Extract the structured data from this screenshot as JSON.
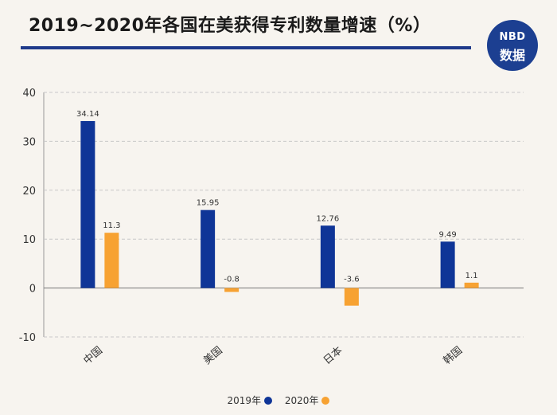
{
  "title": "2019~2020年各国在美获得专利数量增速（%）",
  "badge": {
    "line1": "NBD",
    "line2": "数据"
  },
  "chart_data": {
    "type": "bar",
    "title": "2019~2020年各国在美获得专利数量增速（%）",
    "xlabel": "",
    "ylabel": "",
    "categories": [
      "中国",
      "美国",
      "日本",
      "韩国"
    ],
    "series": [
      {
        "name": "2019年",
        "color": "#0f3597",
        "values": [
          34.14,
          15.95,
          12.76,
          9.49
        ],
        "labels": [
          "34.14",
          "15.95",
          "12.76",
          "9.49"
        ]
      },
      {
        "name": "2020年",
        "color": "#f7a232",
        "values": [
          11.3,
          -0.8,
          -3.6,
          1.1
        ],
        "labels": [
          "11.3",
          "-0.8",
          "-3.6",
          "1.1"
        ]
      }
    ],
    "ylim": [
      -10,
      40
    ],
    "yticks": [
      -10,
      0,
      10,
      20,
      30,
      40
    ],
    "ytick_labels": [
      "-10",
      "0",
      "10",
      "20",
      "30",
      "40"
    ],
    "grid": true,
    "legend": "bottom-center"
  }
}
